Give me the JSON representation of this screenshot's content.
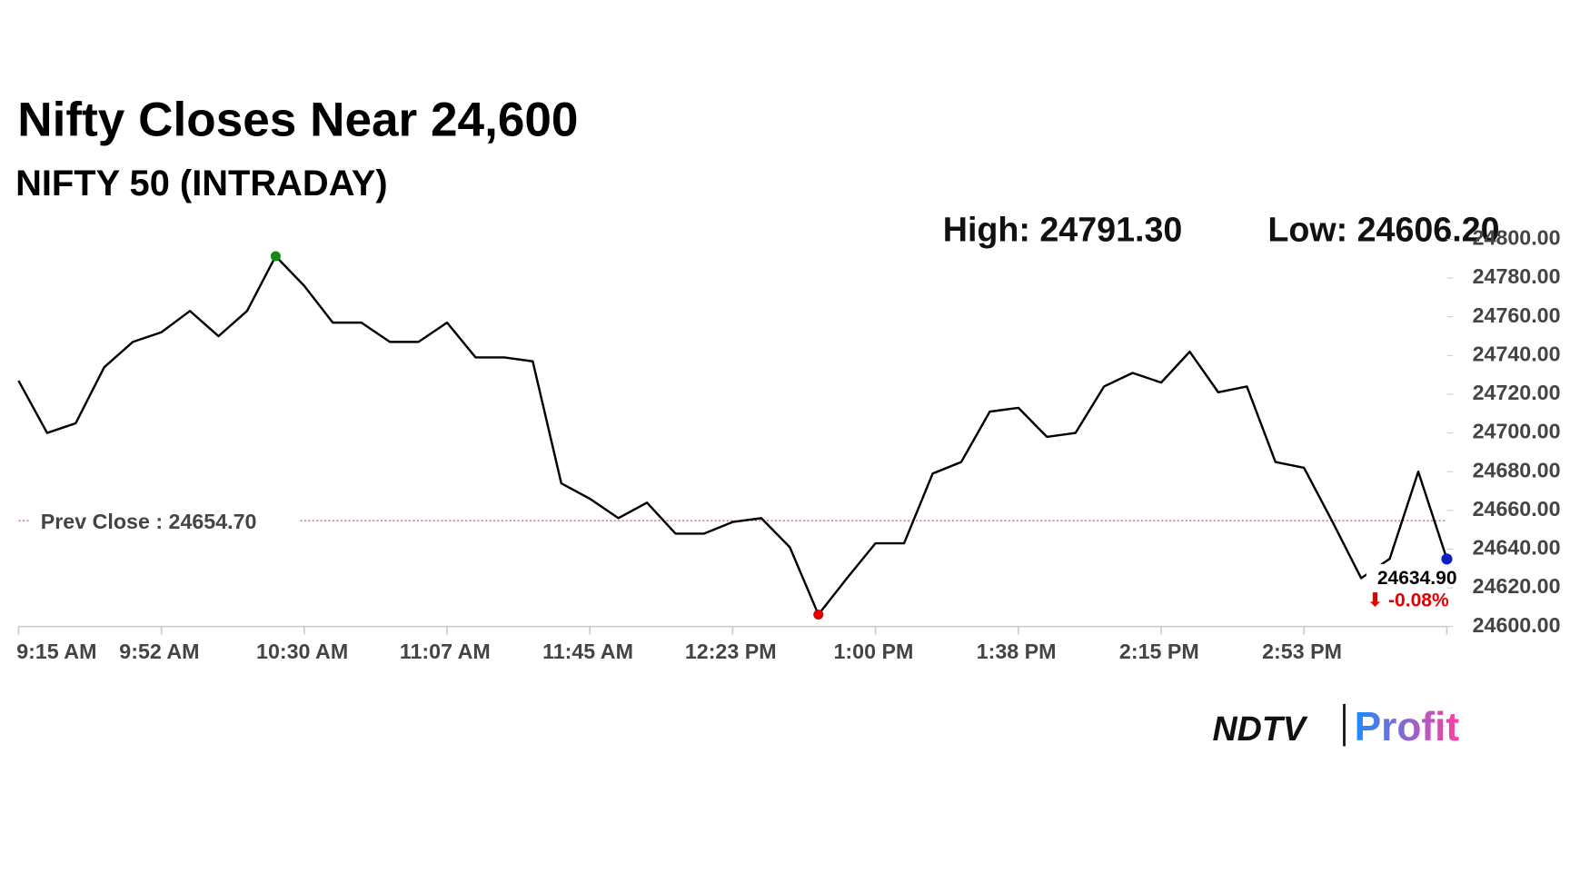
{
  "chart_data": {
    "type": "line",
    "title": "Nifty Closes Near 24,600",
    "subtitle": "NIFTY 50 (INTRADAY)",
    "high": {
      "text": "High: 24791.30",
      "value": 24791.3,
      "index": 9,
      "color": "#138a13"
    },
    "low": {
      "text": "Low: 24606.20",
      "value": 24606.2,
      "index": 28,
      "color": "#e00000"
    },
    "prev_close": {
      "text": "Prev Close : 24654.70",
      "value": 24654.7,
      "color": "#c0392b"
    },
    "last": {
      "value": 24634.9,
      "label": "24634.90",
      "color": "#1020c0",
      "change": {
        "value": -0.08,
        "label": "⬇ -0.08%",
        "color": "#e00000"
      }
    },
    "categories": [
      "9:15 AM",
      null,
      null,
      null,
      null,
      "9:52 AM",
      null,
      null,
      null,
      null,
      "10:30 AM",
      null,
      null,
      null,
      null,
      "11:07 AM",
      null,
      null,
      null,
      null,
      "11:45 AM",
      null,
      null,
      null,
      null,
      "12:23 PM",
      null,
      null,
      null,
      null,
      "1:00 PM",
      null,
      null,
      null,
      null,
      "1:38 PM",
      null,
      null,
      null,
      null,
      "2:15 PM",
      null,
      null,
      null,
      null,
      "2:53 PM",
      null,
      null,
      null,
      null,
      null
    ],
    "series": [
      {
        "name": "NIFTY 50",
        "color": "#000000",
        "values": [
          24727,
          24700,
          24705,
          24734,
          24747,
          24752,
          24763,
          24750,
          24763,
          24791.3,
          24776,
          24757,
          24757,
          24747,
          24747,
          24757,
          24739,
          24739,
          24737,
          24674,
          24666,
          24656,
          24664,
          24648,
          24648,
          24654,
          24656,
          24641,
          24606.2,
          24625,
          24643,
          24643,
          24679,
          24685,
          24711,
          24713,
          24698,
          24700,
          24724,
          24731,
          24726,
          24742,
          24721,
          24724,
          24685,
          24682,
          24654,
          24625,
          24635,
          24680,
          24634.9
        ]
      }
    ],
    "ylim": [
      24600,
      24800
    ],
    "yticks": [
      {
        "value": 24600,
        "label": "24600.00"
      },
      {
        "value": 24620,
        "label": "24620.00"
      },
      {
        "value": 24640,
        "label": "24640.00"
      },
      {
        "value": 24660,
        "label": "24660.00"
      },
      {
        "value": 24680,
        "label": "24680.00"
      },
      {
        "value": 24700,
        "label": "24700.00"
      },
      {
        "value": 24720,
        "label": "24720.00"
      },
      {
        "value": 24740,
        "label": "24740.00"
      },
      {
        "value": 24760,
        "label": "24760.00"
      },
      {
        "value": 24780,
        "label": "24780.00"
      },
      {
        "value": 24800,
        "label": "24800.00"
      }
    ]
  },
  "logo": {
    "brand": "NDTV",
    "product": "Profit"
  }
}
